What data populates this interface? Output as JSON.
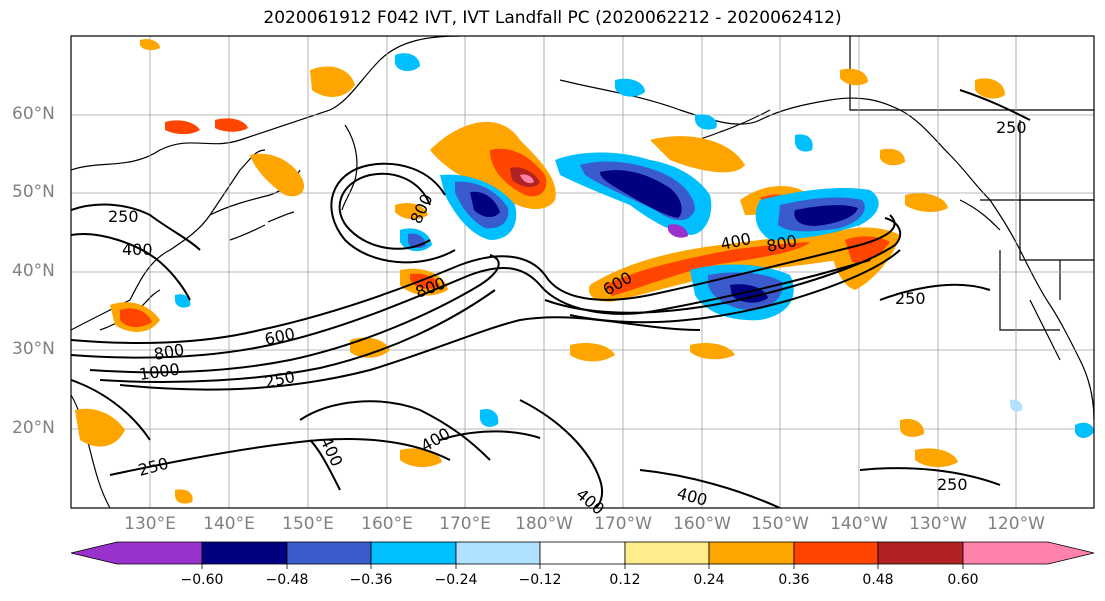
{
  "title": "2020061912 F042 IVT, IVT Landfall PC (2020062212 - 2020062412)",
  "lat_labels": [
    "60°N",
    "50°N",
    "40°N",
    "30°N",
    "20°N"
  ],
  "lon_labels": [
    "130°E",
    "140°E",
    "150°E",
    "160°E",
    "170°E",
    "180°W",
    "170°W",
    "160°W",
    "150°W",
    "140°W",
    "130°W",
    "120°W"
  ],
  "contour_labels": [
    "250",
    "400",
    "600",
    "800",
    "1000"
  ],
  "colorbar": {
    "ticks": [
      "−0.60",
      "−0.48",
      "−0.36",
      "−0.24",
      "−0.12",
      "0.12",
      "0.24",
      "0.36",
      "0.48",
      "0.60"
    ],
    "colors": [
      "#9932cc",
      "#000080",
      "#3a5bcc",
      "#00bfff",
      "#b0e2ff",
      "#ffffff",
      "#ffec8b",
      "#ffa500",
      "#ff4500",
      "#b22222",
      "#ff82ab"
    ]
  }
}
